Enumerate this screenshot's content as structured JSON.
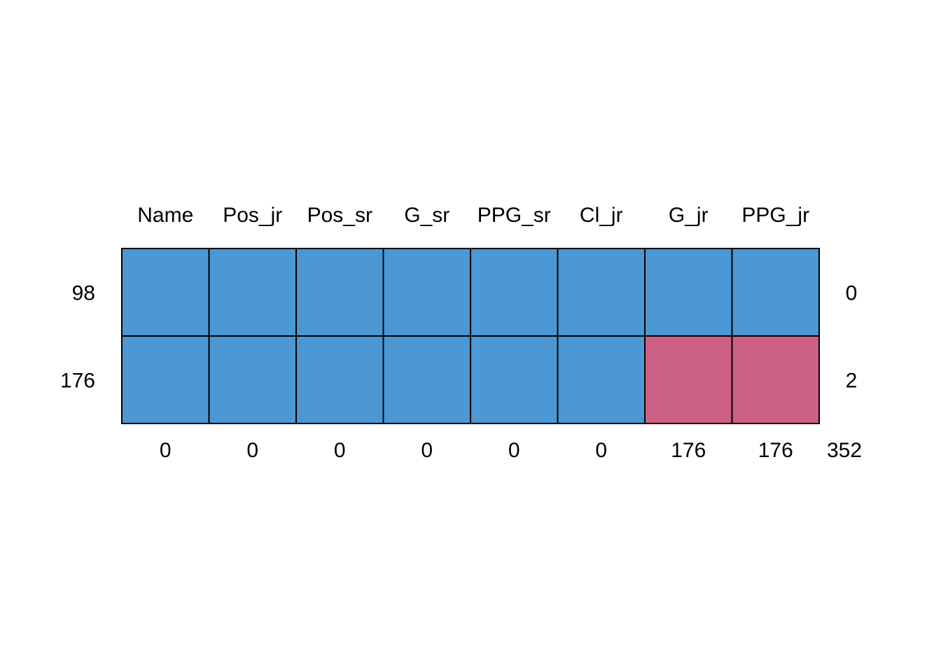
{
  "chart_data": {
    "type": "heatmap",
    "title": "",
    "columns": [
      "Name",
      "Pos_jr",
      "Pos_sr",
      "G_sr",
      "PPG_sr",
      "Cl_jr",
      "G_jr",
      "PPG_jr"
    ],
    "rows": [
      {
        "count": "98",
        "missing_count": "0",
        "pattern": [
          1,
          1,
          1,
          1,
          1,
          1,
          1,
          1
        ]
      },
      {
        "count": "176",
        "missing_count": "2",
        "pattern": [
          1,
          1,
          1,
          1,
          1,
          1,
          0,
          0
        ]
      }
    ],
    "column_missing_totals": [
      "0",
      "0",
      "0",
      "0",
      "0",
      "0",
      "176",
      "176"
    ],
    "total_missing": "352",
    "colors": {
      "observed": "#4b98d4",
      "missing": "#cc5f84",
      "border": "#000000"
    }
  }
}
